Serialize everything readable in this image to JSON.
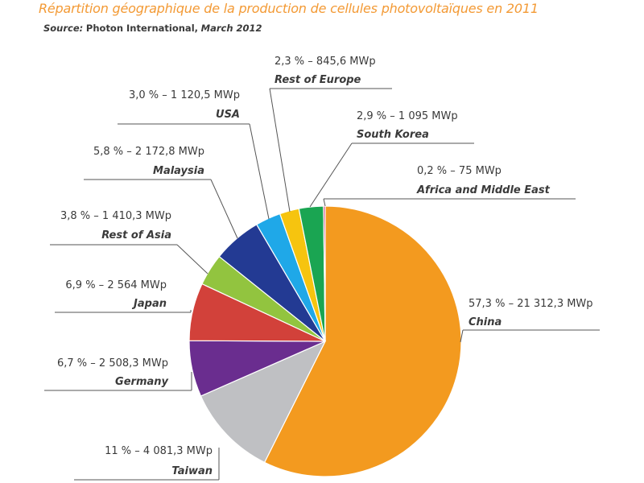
{
  "title": "Répartition géographique de la production de cellules photovoltaïques en 2011",
  "source": {
    "label": "Source:",
    "publisher": "Photon International,",
    "date": "March 2012"
  },
  "chart_data": {
    "type": "pie",
    "unit": "MWp",
    "slices": [
      {
        "name": "China",
        "value_label": "57,3 % – 21 312,3 MWp",
        "percent": 57.3,
        "value": 21312.3,
        "color": "#f39a1f"
      },
      {
        "name": "Taiwan",
        "value_label": "11 % – 4 081,3 MWp",
        "percent": 11.0,
        "value": 4081.3,
        "color": "#bfc0c3"
      },
      {
        "name": "Germany",
        "value_label": "6,7 % – 2 508,3 MWp",
        "percent": 6.7,
        "value": 2508.3,
        "color": "#6a2d8f"
      },
      {
        "name": "Japan",
        "value_label": "6,9 % – 2 564 MWp",
        "percent": 6.9,
        "value": 2564,
        "color": "#d2413a"
      },
      {
        "name": "Rest of Asia",
        "value_label": "3,8 % – 1 410,3 MWp",
        "percent": 3.8,
        "value": 1410.3,
        "color": "#92c43f"
      },
      {
        "name": "Malaysia",
        "value_label": "5,8 % – 2 172,8 MWp",
        "percent": 5.8,
        "value": 2172.8,
        "color": "#233a93"
      },
      {
        "name": "USA",
        "value_label": "3,0 % – 1 120,5 MWp",
        "percent": 3.0,
        "value": 1120.5,
        "color": "#1fa8e8"
      },
      {
        "name": "Rest of Europe",
        "value_label": "2,3 % – 845,6 MWp",
        "percent": 2.3,
        "value": 845.6,
        "color": "#f6c40f"
      },
      {
        "name": "South Korea",
        "value_label": "2,9 % – 1 095 MWp",
        "percent": 2.9,
        "value": 1095,
        "color": "#1aa552"
      },
      {
        "name": "Africa and Middle East",
        "value_label": "0,2 % – 75 MWp",
        "percent": 0.2,
        "value": 75,
        "color": "#c8166f"
      }
    ]
  }
}
